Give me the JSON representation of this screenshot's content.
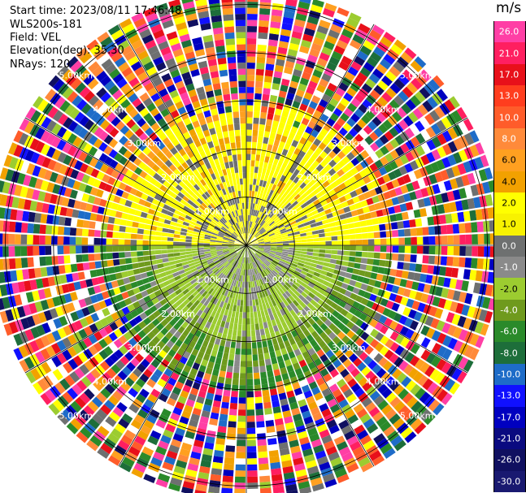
{
  "header": {
    "start_time": "Start time: 2023/08/11 17:46:48",
    "instrument": "WLS200s-181",
    "field": "Field: VEL",
    "elevation": "Elevation(deg): 35.30",
    "nrays": "NRays: 120"
  },
  "chart_data": {
    "type": "ppi",
    "field": "VEL",
    "units": "m/s",
    "n_rays": 120,
    "elevation_deg": 35.3,
    "ring_labels": [
      "1.00km",
      "2.00km",
      "3.00km",
      "4.00km",
      "5.00km"
    ],
    "ring_ranges_km": [
      1,
      2,
      3,
      4,
      5
    ],
    "max_range_km": 5.3,
    "spoke_step_deg": 30,
    "colorbar": {
      "unit": "m/s",
      "labels": [
        "26.0",
        "21.0",
        "17.0",
        "13.0",
        "10.0",
        "8.0",
        "6.0",
        "4.0",
        "2.0",
        "1.0",
        "0.0",
        "-1.0",
        "-2.0",
        "-4.0",
        "-6.0",
        "-8.0",
        "-10.0",
        "-13.0",
        "-17.0",
        "-21.0",
        "-26.0",
        "-30.0"
      ],
      "colors": [
        "#ff3fa5",
        "#ff1f60",
        "#e8101a",
        "#ff3d1e",
        "#ff5c2a",
        "#ff8a3a",
        "#ffa020",
        "#f2a100",
        "#ffff00",
        "#f8f200",
        "#6e7070",
        "#8a8a8a",
        "#9ccc30",
        "#6f9a1d",
        "#2a8a2a",
        "#1d6e3a",
        "#1e6cc8",
        "#1010ff",
        "#0000c0",
        "#0a0a80",
        "#101060",
        "#191970"
      ]
    },
    "velocity_field_description_bins": [
      {
        "range_km": [
          0.0,
          1.0
        ],
        "upper_half": "yellow/grey (0 to 2 m/s)",
        "lower_half": "grey/green (0 to -2 m/s)"
      },
      {
        "range_km": [
          1.0,
          2.0
        ],
        "upper_half": "yellow (2 m/s)",
        "lower_half": "light green (-2 m/s)"
      },
      {
        "range_km": [
          2.0,
          3.0
        ],
        "upper_half": "yellow/orange (2 to 6 m/s)",
        "lower_half": "green (-2 to -6 m/s)"
      },
      {
        "range_km": [
          3.0,
          5.3
        ],
        "upper_half": "noise (mixed colors)",
        "lower_half": "noise (mixed colors)"
      }
    ]
  }
}
